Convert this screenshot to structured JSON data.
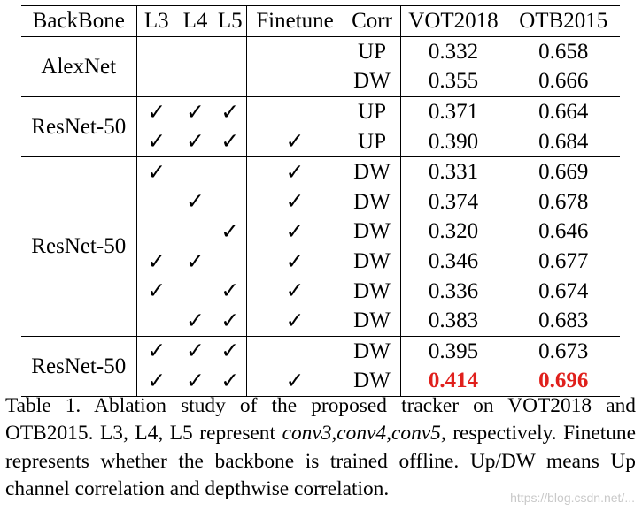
{
  "table": {
    "headers": [
      "BackBone",
      "L3",
      "L4",
      "L5",
      "Finetune",
      "Corr",
      "VOT2018",
      "OTB2015"
    ],
    "check_mark": "✓",
    "groups": [
      {
        "backbone": "AlexNet",
        "rows": [
          {
            "l3": false,
            "l4": false,
            "l5": false,
            "finetune": false,
            "corr": "UP",
            "vot2018": "0.332",
            "otb2015": "0.658"
          },
          {
            "l3": false,
            "l4": false,
            "l5": false,
            "finetune": false,
            "corr": "DW",
            "vot2018": "0.355",
            "otb2015": "0.666"
          }
        ]
      },
      {
        "backbone": "ResNet-50",
        "rows": [
          {
            "l3": true,
            "l4": true,
            "l5": true,
            "finetune": false,
            "corr": "UP",
            "vot2018": "0.371",
            "otb2015": "0.664"
          },
          {
            "l3": true,
            "l4": true,
            "l5": true,
            "finetune": true,
            "corr": "UP",
            "vot2018": "0.390",
            "otb2015": "0.684"
          }
        ]
      },
      {
        "backbone": "ResNet-50",
        "rows": [
          {
            "l3": true,
            "l4": false,
            "l5": false,
            "finetune": true,
            "corr": "DW",
            "vot2018": "0.331",
            "otb2015": "0.669"
          },
          {
            "l3": false,
            "l4": true,
            "l5": false,
            "finetune": true,
            "corr": "DW",
            "vot2018": "0.374",
            "otb2015": "0.678"
          },
          {
            "l3": false,
            "l4": false,
            "l5": true,
            "finetune": true,
            "corr": "DW",
            "vot2018": "0.320",
            "otb2015": "0.646"
          },
          {
            "l3": true,
            "l4": true,
            "l5": false,
            "finetune": true,
            "corr": "DW",
            "vot2018": "0.346",
            "otb2015": "0.677"
          },
          {
            "l3": true,
            "l4": false,
            "l5": true,
            "finetune": true,
            "corr": "DW",
            "vot2018": "0.336",
            "otb2015": "0.674"
          },
          {
            "l3": false,
            "l4": true,
            "l5": true,
            "finetune": true,
            "corr": "DW",
            "vot2018": "0.383",
            "otb2015": "0.683"
          }
        ]
      },
      {
        "backbone": "ResNet-50",
        "rows": [
          {
            "l3": true,
            "l4": true,
            "l5": true,
            "finetune": false,
            "corr": "DW",
            "vot2018": "0.395",
            "otb2015": "0.673"
          },
          {
            "l3": true,
            "l4": true,
            "l5": true,
            "finetune": true,
            "corr": "DW",
            "vot2018": "0.414",
            "otb2015": "0.696",
            "best": true
          }
        ]
      }
    ],
    "highlight_color": "#e0201c"
  },
  "caption": {
    "lead": "Table 1. Ablation study of the proposed tracker on VOT2018 and OTB2015. L3, L4, L5 represent ",
    "conv3": "conv3",
    "sep1": ",",
    "conv4": "conv4",
    "sep2": ",",
    "conv5": "conv5",
    "tail": ", respectively. Finetune represents whether the backbone is trained offline. Up/DW means Up channel correlation and depthwise correlation."
  },
  "watermark": "https://blog.csdn.net/..."
}
